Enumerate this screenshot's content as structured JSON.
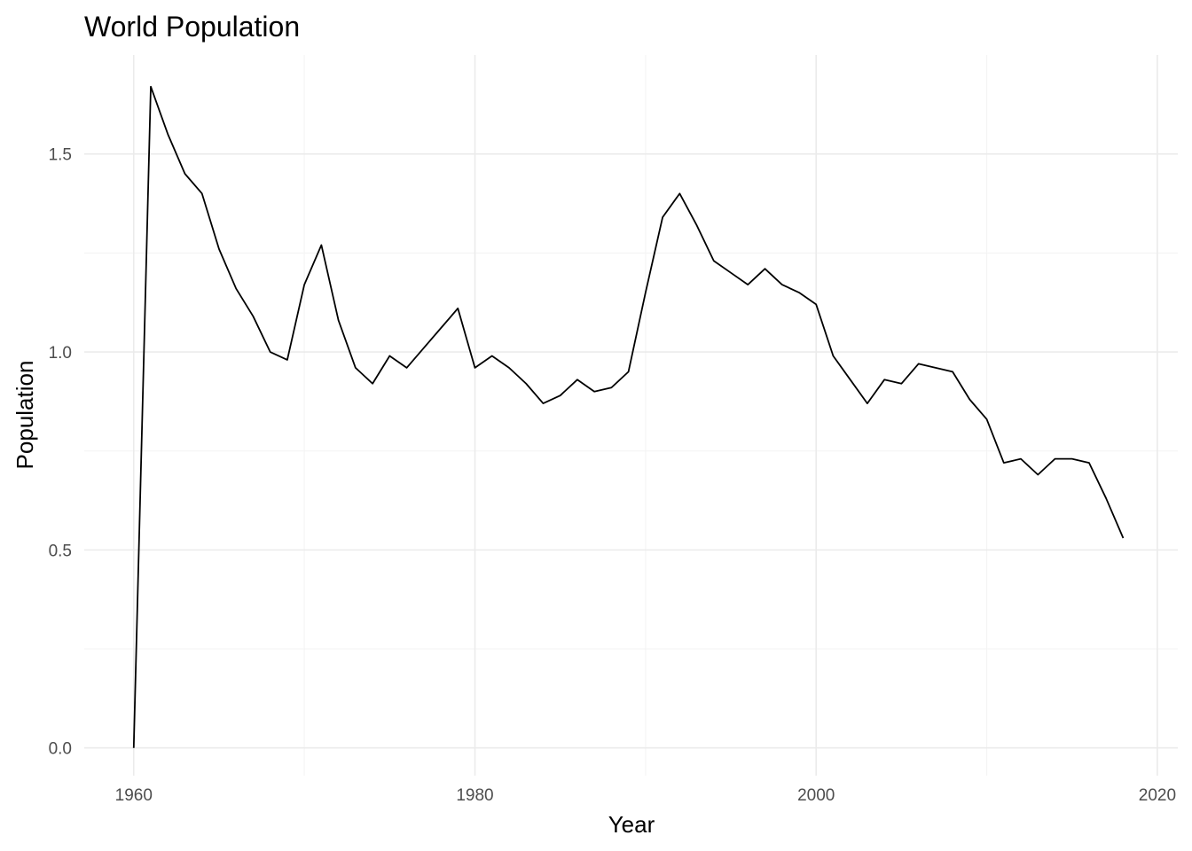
{
  "chart_data": {
    "type": "line",
    "title": "World Population",
    "xlabel": "Year",
    "ylabel": "Population",
    "xlim": [
      1957.1,
      2021.2
    ],
    "ylim": [
      -0.07,
      1.75
    ],
    "x_ticks": [
      1960,
      1980,
      2000,
      2020
    ],
    "x_tick_labels": [
      "1960",
      "1980",
      "2000",
      "2020"
    ],
    "y_ticks": [
      0.0,
      0.5,
      1.0,
      1.5
    ],
    "y_tick_labels": [
      "0.0",
      "0.5",
      "1.0",
      "1.5"
    ],
    "grid": true,
    "legend": "none",
    "colors": {
      "line": "#000000",
      "grid_major": "#ebebeb",
      "grid_minor": "#f3f3f3",
      "tick_text": "#4d4d4d"
    },
    "series": [
      {
        "x": [
          1960,
          1961,
          1962,
          1963,
          1964,
          1965,
          1966,
          1967,
          1968,
          1969,
          1970,
          1971,
          1972,
          1973,
          1974,
          1975,
          1976,
          1977,
          1978,
          1979,
          1980,
          1981,
          1982,
          1983,
          1984,
          1985,
          1986,
          1987,
          1988,
          1989,
          1990,
          1991,
          1992,
          1993,
          1994,
          1995,
          1996,
          1997,
          1998,
          1999,
          2000,
          2001,
          2002,
          2003,
          2004,
          2005,
          2006,
          2007,
          2008,
          2009,
          2010,
          2011,
          2012,
          2013,
          2014,
          2015,
          2016,
          2017,
          2018
        ],
        "y": [
          0.0,
          1.67,
          1.55,
          1.45,
          1.4,
          1.26,
          1.16,
          1.09,
          1.0,
          0.98,
          1.17,
          1.27,
          1.08,
          0.96,
          0.92,
          0.99,
          0.96,
          1.01,
          1.06,
          1.11,
          0.96,
          0.99,
          0.96,
          0.92,
          0.87,
          0.89,
          0.93,
          0.9,
          0.91,
          0.95,
          1.15,
          1.34,
          1.4,
          1.32,
          1.23,
          1.2,
          1.17,
          1.21,
          1.17,
          1.15,
          1.12,
          0.99,
          0.93,
          0.87,
          0.93,
          0.92,
          0.97,
          0.96,
          0.95,
          0.88,
          0.83,
          0.72,
          0.73,
          0.69,
          0.73,
          0.73,
          0.72,
          0.63,
          0.53
        ]
      }
    ]
  }
}
